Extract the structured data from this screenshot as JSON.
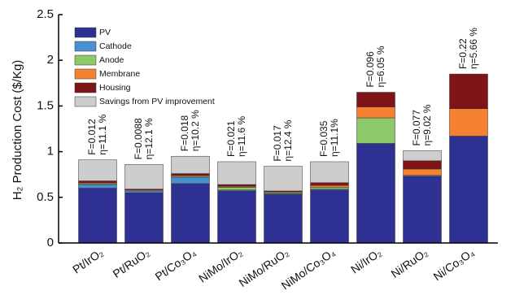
{
  "chart_data": {
    "type": "stacked_bar",
    "y_label": "H₂ Production Cost ($/Kg)",
    "categories": [
      "Pt/IrO₂",
      "Pt/RuO₂",
      "Pt/Co₃O₄",
      "NiMo/IrO₂",
      "NiMo/RuO₂",
      "NiMo/Co₃O₄",
      "Ni/IrO₂",
      "Ni/RuO₂",
      "Ni/Co₃O₄"
    ],
    "series": [
      {
        "name": "PV",
        "color": "#2e3192",
        "values": [
          0.6,
          0.55,
          0.65,
          0.57,
          0.53,
          0.58,
          1.09,
          0.73,
          1.17
        ]
      },
      {
        "name": "Cathode",
        "color": "#4a8fd0",
        "values": [
          0.04,
          0.02,
          0.07,
          0.01,
          0.01,
          0.01,
          0,
          0.01,
          0
        ]
      },
      {
        "name": "Anode",
        "color": "#8dc86b",
        "values": [
          0.01,
          0,
          0.01,
          0.03,
          0.01,
          0.02,
          0.28,
          0,
          0
        ]
      },
      {
        "name": "Membrane",
        "color": "#f58233",
        "values": [
          0.01,
          0.01,
          0.01,
          0.01,
          0.01,
          0.02,
          0.12,
          0.07,
          0.3
        ]
      },
      {
        "name": "Housing",
        "color": "#7f1416",
        "values": [
          0.02,
          0.01,
          0.02,
          0.02,
          0.01,
          0.03,
          0.16,
          0.09,
          0.38
        ]
      },
      {
        "name": "Savings from PV improvement",
        "color": "#cdcdcd",
        "values": [
          0.23,
          0.27,
          0.19,
          0.25,
          0.27,
          0.23,
          0,
          0.11,
          0
        ]
      }
    ],
    "annotations": [
      {
        "F": "F=0.012",
        "eta": "η=11.1 %"
      },
      {
        "F": "F=0.0088",
        "eta": "η=12.1 %"
      },
      {
        "F": "F=0.018",
        "eta": "η=10.2 %"
      },
      {
        "F": "F=0.021",
        "eta": "η=11.6 %"
      },
      {
        "F": "F=0.017",
        "eta": "η=12.4 %"
      },
      {
        "F": "F=0.035",
        "eta": "η=11.1%"
      },
      {
        "F": "F=0.096",
        "eta": "η=6.05 %"
      },
      {
        "F": "F=0.077",
        "eta": "η=9.02 %"
      },
      {
        "F": "F=0.22",
        "eta": "η=5.66 %"
      }
    ],
    "ylim": [
      0,
      2.5
    ],
    "yticks": [
      0,
      0.5,
      1,
      1.5,
      2,
      2.5
    ],
    "legend": "top-left"
  }
}
